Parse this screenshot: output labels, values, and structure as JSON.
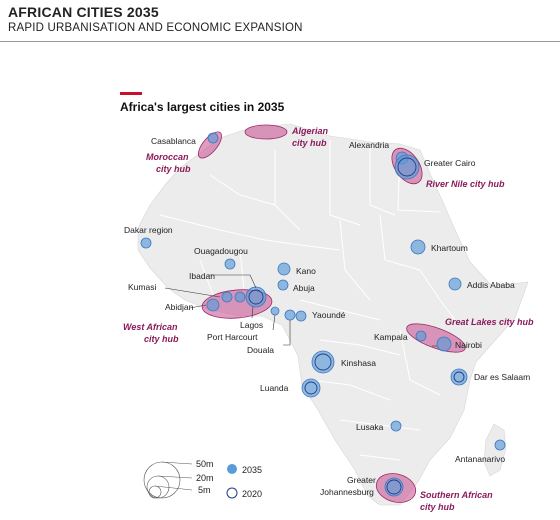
{
  "header": {
    "title": "AFRICAN CITIES 2035",
    "subtitle": "RAPID URBANISATION AND ECONOMIC EXPANSION"
  },
  "map": {
    "title": "Africa's largest cities in 2035",
    "colors": {
      "land": "#ececec",
      "border": "#ffffff",
      "bubble": "#5a9bd8",
      "hub_fill": "#cc5a96",
      "hub_label": "#8b1a5a",
      "accent": "#c8102e"
    },
    "cities": [
      "Casablanca",
      "Alexandria",
      "Greater Cairo",
      "Dakar region",
      "Ouagadougou",
      "Kumasi",
      "Abidjan",
      "Ibadan",
      "Kano",
      "Abuja",
      "Lagos",
      "Port Harcourt",
      "Yaoundé",
      "Douala",
      "Khartoum",
      "Addis Ababa",
      "Kampala",
      "Nairobi",
      "Kinshasa",
      "Luanda",
      "Dar es Salaam",
      "Lusaka",
      "Antananarivo",
      "Greater",
      "Johannesburg"
    ],
    "hubs": [
      "Algerian",
      "city hub",
      "Moroccan",
      "city hub",
      "River Nile city hub",
      "West African",
      "city hub",
      "Great Lakes city hub",
      "Southern African",
      "city hub"
    ]
  },
  "legend": {
    "sizes": [
      "50m",
      "20m",
      "5m"
    ],
    "year_2035": "2035",
    "year_2020": "2020"
  }
}
